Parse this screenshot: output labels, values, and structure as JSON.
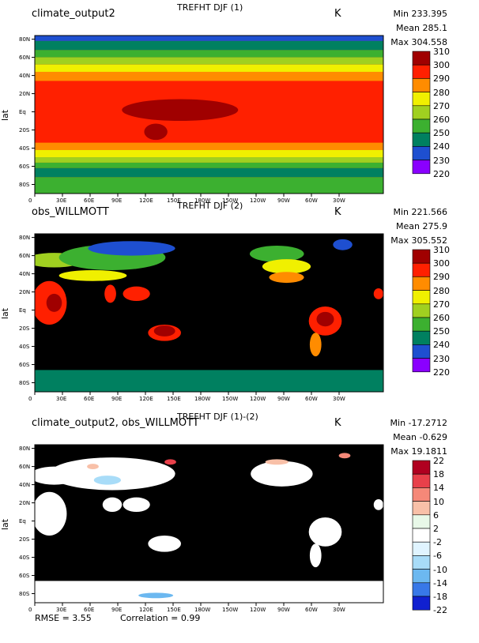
{
  "charts": [
    {
      "left_label": "climate_output2",
      "title": "TREFHT DJF (1)",
      "units": "K",
      "stats": {
        "min": "Min 233.395",
        "mean": "Mean 285.1",
        "max": "Max 304.558"
      },
      "colorbar": {
        "labels": [
          "310",
          "300",
          "290",
          "280",
          "270",
          "260",
          "250",
          "240",
          "230",
          "220"
        ],
        "colors": [
          "#a00000",
          "#ff2000",
          "#ff8c00",
          "#f0f000",
          "#a0d020",
          "#3cb030",
          "#008060",
          "#1e4fd0",
          "#8a00ff"
        ]
      },
      "background": "#ff2000",
      "bands": [
        {
          "y0": 90,
          "y1": 78,
          "color": "#1e4fd0"
        },
        {
          "y0": 78,
          "y1": 68,
          "color": "#008060"
        },
        {
          "y0": 68,
          "y1": 60,
          "color": "#3cb030"
        },
        {
          "y0": 60,
          "y1": 52,
          "color": "#a0d020"
        },
        {
          "y0": 52,
          "y1": 44,
          "color": "#f0f000"
        },
        {
          "y0": 44,
          "y1": 34,
          "color": "#ff8c00"
        },
        {
          "y0": 34,
          "y1": -34,
          "color": "#ff2000"
        },
        {
          "y0": -34,
          "y1": -42,
          "color": "#ff8c00"
        },
        {
          "y0": -42,
          "y1": -50,
          "color": "#f0f000"
        },
        {
          "y0": -50,
          "y1": -56,
          "color": "#a0d020"
        },
        {
          "y0": -56,
          "y1": -62,
          "color": "#3cb030"
        },
        {
          "y0": -62,
          "y1": -72,
          "color": "#008060"
        },
        {
          "y0": -72,
          "y1": -90,
          "color": "#3cb030"
        }
      ],
      "blobs": [
        {
          "lon": 150,
          "lat": 2,
          "rx": 60,
          "ry": 12,
          "color": "#a00000"
        },
        {
          "lon": 125,
          "lat": -22,
          "rx": 12,
          "ry": 9,
          "color": "#a00000"
        }
      ],
      "footer": null
    },
    {
      "left_label": "obs_WILLMOTT",
      "title": "TREFHT DJF (2)",
      "units": "K",
      "stats": {
        "min": "Min 221.566",
        "mean": "Mean 275.9",
        "max": "Max 305.552"
      },
      "colorbar": {
        "labels": [
          "310",
          "300",
          "290",
          "280",
          "270",
          "260",
          "250",
          "240",
          "230",
          "220"
        ],
        "colors": [
          "#a00000",
          "#ff2000",
          "#ff8c00",
          "#f0f000",
          "#a0d020",
          "#3cb030",
          "#008060",
          "#1e4fd0",
          "#8a00ff"
        ]
      },
      "background": "#000000",
      "bands": [
        {
          "y0": -66,
          "y1": -90,
          "color": "#008060"
        }
      ],
      "blobs": [
        {
          "lon": 20,
          "lat": 55,
          "rx": 30,
          "ry": 8,
          "color": "#a0d020"
        },
        {
          "lon": 80,
          "lat": 58,
          "rx": 55,
          "ry": 14,
          "color": "#3cb030"
        },
        {
          "lon": 100,
          "lat": 68,
          "rx": 45,
          "ry": 8,
          "color": "#1e4fd0"
        },
        {
          "lon": 60,
          "lat": 38,
          "rx": 35,
          "ry": 6,
          "color": "#f0f000"
        },
        {
          "lon": 15,
          "lat": 8,
          "rx": 18,
          "ry": 24,
          "color": "#ff2000"
        },
        {
          "lon": 20,
          "lat": 8,
          "rx": 8,
          "ry": 10,
          "color": "#a00000"
        },
        {
          "lon": 78,
          "lat": 18,
          "rx": 6,
          "ry": 10,
          "color": "#ff2000"
        },
        {
          "lon": 105,
          "lat": 18,
          "rx": 14,
          "ry": 8,
          "color": "#ff2000"
        },
        {
          "lon": 134,
          "lat": -25,
          "rx": 17,
          "ry": 9,
          "color": "#ff2000"
        },
        {
          "lon": 134,
          "lat": -23,
          "rx": 11,
          "ry": 6,
          "color": "#a00000"
        },
        {
          "lon": 300,
          "lat": -12,
          "rx": 17,
          "ry": 16,
          "color": "#ff2000"
        },
        {
          "lon": 300,
          "lat": -10,
          "rx": 9,
          "ry": 8,
          "color": "#a00000"
        },
        {
          "lon": 290,
          "lat": -38,
          "rx": 6,
          "ry": 13,
          "color": "#ff8c00"
        },
        {
          "lon": 250,
          "lat": 62,
          "rx": 28,
          "ry": 9,
          "color": "#3cb030"
        },
        {
          "lon": 260,
          "lat": 48,
          "rx": 25,
          "ry": 8,
          "color": "#f0f000"
        },
        {
          "lon": 260,
          "lat": 36,
          "rx": 18,
          "ry": 6,
          "color": "#ff8c00"
        },
        {
          "lon": 318,
          "lat": 72,
          "rx": 10,
          "ry": 6,
          "color": "#1e4fd0"
        },
        {
          "lon": 355,
          "lat": 18,
          "rx": 5,
          "ry": 6,
          "color": "#ff2000"
        }
      ],
      "footer": null
    },
    {
      "left_label": "climate_output2, obs_WILLMOTT",
      "title": "TREFHT DJF (1)-(2)",
      "units": "K",
      "stats": {
        "min": "Min -17.2712",
        "mean": "Mean -0.629",
        "max": "Max 19.1811"
      },
      "colorbar": {
        "labels": [
          "22",
          "18",
          "14",
          "10",
          "6",
          "2",
          "-2",
          "-6",
          "-10",
          "-14",
          "-18",
          "-22"
        ],
        "colors": [
          "#b00020",
          "#e8404a",
          "#f58878",
          "#f8c0a8",
          "#e8f8e8",
          "#ffffff",
          "#e0f4ff",
          "#a8dcf8",
          "#6cb8f0",
          "#3878e8",
          "#1020d0"
        ]
      },
      "background": "#000000",
      "bands": [
        {
          "y0": -66,
          "y1": -90,
          "color": "#ffffff"
        }
      ],
      "blobs": [
        {
          "lon": 80,
          "lat": 52,
          "rx": 65,
          "ry": 18,
          "color": "#ffffff"
        },
        {
          "lon": 20,
          "lat": 50,
          "rx": 25,
          "ry": 10,
          "color": "#ffffff"
        },
        {
          "lon": 15,
          "lat": 8,
          "rx": 18,
          "ry": 24,
          "color": "#ffffff"
        },
        {
          "lon": 80,
          "lat": 18,
          "rx": 10,
          "ry": 8,
          "color": "#ffffff"
        },
        {
          "lon": 105,
          "lat": 18,
          "rx": 14,
          "ry": 8,
          "color": "#ffffff"
        },
        {
          "lon": 134,
          "lat": -25,
          "rx": 17,
          "ry": 9,
          "color": "#ffffff"
        },
        {
          "lon": 300,
          "lat": -12,
          "rx": 17,
          "ry": 16,
          "color": "#ffffff"
        },
        {
          "lon": 290,
          "lat": -38,
          "rx": 6,
          "ry": 13,
          "color": "#ffffff"
        },
        {
          "lon": 255,
          "lat": 52,
          "rx": 32,
          "ry": 14,
          "color": "#ffffff"
        },
        {
          "lon": 355,
          "lat": 18,
          "rx": 5,
          "ry": 6,
          "color": "#ffffff"
        },
        {
          "lon": 75,
          "lat": 45,
          "rx": 14,
          "ry": 5,
          "color": "#a8dcf8"
        },
        {
          "lon": 60,
          "lat": 60,
          "rx": 6,
          "ry": 3,
          "color": "#f8c0a8"
        },
        {
          "lon": 140,
          "lat": 65,
          "rx": 6,
          "ry": 3,
          "color": "#e8404a"
        },
        {
          "lon": 320,
          "lat": 72,
          "rx": 6,
          "ry": 3,
          "color": "#f58878"
        },
        {
          "lon": 250,
          "lat": 65,
          "rx": 12,
          "ry": 3,
          "color": "#f8c0a8"
        },
        {
          "lon": 125,
          "lat": -82,
          "rx": 18,
          "ry": 3,
          "color": "#6cb8f0"
        }
      ],
      "footer": {
        "rmse": "RMSE = 3.55",
        "corr": "Correlation = 0.99"
      }
    }
  ],
  "chart_data": [
    {
      "type": "heatmap",
      "title": "TREFHT DJF (1)",
      "units": "K",
      "x_ticks": [
        "0",
        "30E",
        "60E",
        "90E",
        "120E",
        "150E",
        "180W",
        "150W",
        "120W",
        "90W",
        "60W",
        "30W"
      ],
      "y_ticks": [
        "80N",
        "60N",
        "40N",
        "20N",
        "Eq",
        "20S",
        "40S",
        "60S",
        "80S"
      ],
      "ylabel": "lat",
      "colorbar_levels": [
        220,
        230,
        240,
        250,
        260,
        270,
        280,
        290,
        300,
        310
      ],
      "min": 233.395,
      "mean": 285.1,
      "max": 304.558
    },
    {
      "type": "heatmap",
      "title": "TREFHT DJF (2)",
      "units": "K",
      "x_ticks": [
        "0",
        "30E",
        "60E",
        "90E",
        "120E",
        "150E",
        "180W",
        "150W",
        "120W",
        "90W",
        "60W",
        "30W"
      ],
      "y_ticks": [
        "80N",
        "60N",
        "40N",
        "20N",
        "Eq",
        "20S",
        "40S",
        "60S",
        "80S"
      ],
      "ylabel": "lat",
      "colorbar_levels": [
        220,
        230,
        240,
        250,
        260,
        270,
        280,
        290,
        300,
        310
      ],
      "min": 221.566,
      "mean": 275.9,
      "max": 305.552
    },
    {
      "type": "heatmap",
      "title": "TREFHT DJF (1)-(2)",
      "units": "K",
      "x_ticks": [
        "0",
        "30E",
        "60E",
        "90E",
        "120E",
        "150E",
        "180W",
        "150W",
        "120W",
        "90W",
        "60W",
        "30W"
      ],
      "y_ticks": [
        "80N",
        "60N",
        "40N",
        "20N",
        "Eq",
        "20S",
        "40S",
        "60S",
        "80S"
      ],
      "ylabel": "lat",
      "colorbar_levels": [
        -22,
        -18,
        -14,
        -10,
        -6,
        -2,
        2,
        6,
        10,
        14,
        18,
        22
      ],
      "min": -17.2712,
      "mean": -0.629,
      "max": 19.1811,
      "rmse": 3.55,
      "correlation": 0.99
    }
  ],
  "axes": {
    "x_ticks": [
      "0",
      "30E",
      "60E",
      "90E",
      "120E",
      "150E",
      "180W",
      "150W",
      "120W",
      "90W",
      "60W",
      "30W"
    ],
    "y_ticks": [
      "80N",
      "60N",
      "40N",
      "20N",
      "Eq",
      "20S",
      "40S",
      "60S",
      "80S"
    ],
    "ylabel": "lat"
  }
}
